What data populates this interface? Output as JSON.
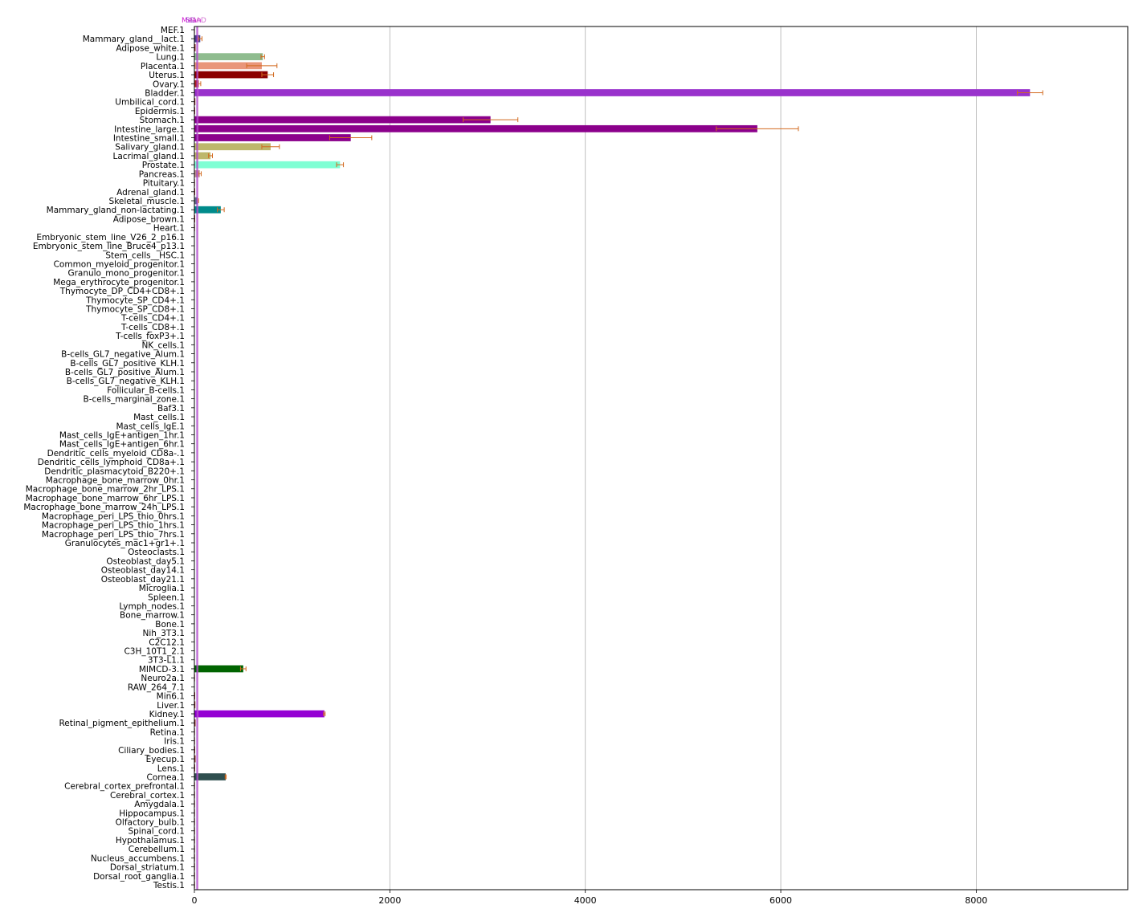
{
  "chart_data": {
    "type": "bar",
    "orientation": "horizontal",
    "title": "",
    "xlabel": "",
    "ylabel": "",
    "xlim": [
      0,
      9550
    ],
    "xticks": [
      0,
      2000,
      4000,
      6000,
      8000
    ],
    "grid": "vertical",
    "legend": "top-left",
    "legend_entries": [
      "Mean",
      "SD",
      "MAD"
    ],
    "legend_colors": [
      "#cc00cc",
      "#9933cc",
      "#cc66cc"
    ],
    "error_bar_color": "#d2691e",
    "reference_line_color": "#cc00cc",
    "categories": [
      "MEF.1",
      "Mammary_gland__lact.1",
      "Adipose_white.1",
      "Lung.1",
      "Placenta.1",
      "Uterus.1",
      "Ovary.1",
      "Bladder.1",
      "Umbilical_cord.1",
      "Epidermis.1",
      "Stomach.1",
      "Intestine_large.1",
      "Intestine_small.1",
      "Salivary_gland.1",
      "Lacrimal_gland.1",
      "Prostate.1",
      "Pancreas.1",
      "Pituitary.1",
      "Adrenal_gland.1",
      "Skeletal_muscle.1",
      "Mammary_gland_non-lactating.1",
      "Adipose_brown.1",
      "Heart.1",
      "Embryonic_stem_line_V26_2_p16.1",
      "Embryonic_stem_line_Bruce4_p13.1",
      "Stem_cells__HSC.1",
      "Common_myeloid_progenitor.1",
      "Granulo_mono_progenitor.1",
      "Mega_erythrocyte_progenitor.1",
      "Thymocyte_DP_CD4+CD8+.1",
      "Thymocyte_SP_CD4+.1",
      "Thymocyte_SP_CD8+.1",
      "T-cells_CD4+.1",
      "T-cells_CD8+.1",
      "T-cells_foxP3+.1",
      "NK_cells.1",
      "B-cells_GL7_negative_Alum.1",
      "B-cells_GL7_positive_KLH.1",
      "B-cells_GL7_positive_Alum.1",
      "B-cells_GL7_negative_KLH.1",
      "Follicular_B-cells.1",
      "B-cells_marginal_zone.1",
      "Baf3.1",
      "Mast_cells.1",
      "Mast_cells_IgE.1",
      "Mast_cells_IgE+antigen_1hr.1",
      "Mast_cells_IgE+antigen_6hr.1",
      "Dendritic_cells_myeloid_CD8a-.1",
      "Dendritic_cells_lymphoid_CD8a+.1",
      "Dendritic_plasmacytoid_B220+.1",
      "Macrophage_bone_marrow_0hr.1",
      "Macrophage_bone_marrow_2hr_LPS.1",
      "Macrophage_bone_marrow_6hr_LPS.1",
      "Macrophage_bone_marrow_24h_LPS.1",
      "Macrophage_peri_LPS_thio_0hrs.1",
      "Macrophage_peri_LPS_thio_1hrs.1",
      "Macrophage_peri_LPS_thio_7hrs.1",
      "Granulocytes_mac1+gr1+.1",
      "Osteoclasts.1",
      "Osteoblast_day5.1",
      "Osteoblast_day14.1",
      "Osteoblast_day21.1",
      "Microglia.1",
      "Spleen.1",
      "Lymph_nodes.1",
      "Bone_marrow.1",
      "Bone.1",
      "Nih_3T3.1",
      "C2C12.1",
      "C3H_10T1_2.1",
      "3T3-L1.1",
      "MIMCD-3.1",
      "Neuro2a.1",
      "RAW_264_7.1",
      "Min6.1",
      "Liver.1",
      "Kidney.1",
      "Retinal_pigment_epithelium.1",
      "Retina.1",
      "Iris.1",
      "Ciliary_bodies.1",
      "Eyecup.1",
      "Lens.1",
      "Cornea.1",
      "Cerebral_cortex_prefrontal.1",
      "Cerebral_cortex.1",
      "Amygdala.1",
      "Hippocampus.1",
      "Olfactory_bulb.1",
      "Spinal_cord.1",
      "Hypothalamus.1",
      "Cerebellum.1",
      "Nucleus_accumbens.1",
      "Dorsal_striatum.1",
      "Dorsal_root_ganglia.1",
      "Testis.1"
    ],
    "values": [
      5,
      60,
      12,
      700,
      690,
      750,
      45,
      8550,
      10,
      8,
      3030,
      5760,
      1600,
      780,
      165,
      1490,
      55,
      6,
      8,
      35,
      270,
      8,
      6,
      4,
      4,
      3,
      3,
      3,
      3,
      3,
      3,
      3,
      3,
      3,
      3,
      3,
      3,
      3,
      3,
      3,
      3,
      3,
      3,
      3,
      3,
      3,
      3,
      3,
      3,
      3,
      3,
      3,
      3,
      3,
      3,
      3,
      3,
      3,
      3,
      3,
      3,
      3,
      3,
      3,
      3,
      3,
      3,
      3,
      3,
      3,
      4,
      500,
      6,
      4,
      8,
      10,
      1330,
      12,
      6,
      6,
      8,
      12,
      8,
      320,
      6,
      6,
      6,
      6,
      6,
      6,
      6,
      6,
      6,
      6,
      6,
      6
    ],
    "errors": [
      0,
      18,
      0,
      18,
      155,
      60,
      20,
      130,
      0,
      0,
      280,
      420,
      215,
      90,
      20,
      35,
      15,
      0,
      0,
      8,
      35,
      0,
      0,
      0,
      0,
      0,
      0,
      0,
      0,
      0,
      0,
      0,
      0,
      0,
      0,
      0,
      0,
      0,
      0,
      0,
      0,
      0,
      0,
      0,
      0,
      0,
      0,
      0,
      0,
      0,
      0,
      0,
      0,
      0,
      0,
      0,
      0,
      0,
      0,
      0,
      0,
      0,
      0,
      0,
      0,
      0,
      0,
      0,
      0,
      0,
      0,
      28,
      0,
      0,
      0,
      0,
      8,
      0,
      0,
      0,
      0,
      0,
      0,
      5,
      0,
      0,
      0,
      0,
      0,
      0,
      0,
      0,
      0,
      0,
      0,
      0
    ],
    "colors": [
      "#8b1a1a",
      "#483d8b",
      "#8b1a1a",
      "#8fbc8f",
      "#e9967a",
      "#8b0000",
      "#b22222",
      "#9932cc",
      "#8b1a1a",
      "#8b1a1a",
      "#8b008b",
      "#8b008b",
      "#8b008b",
      "#bdb76b",
      "#bdb76b",
      "#7fffd4",
      "#bc8f8f",
      "#8b1a1a",
      "#8b1a1a",
      "#5f6b8a",
      "#008b8b",
      "#8b1a1a",
      "#8b1a1a",
      "#8b1a1a",
      "#8b1a1a",
      "#8b1a1a",
      "#8b1a1a",
      "#8b1a1a",
      "#8b1a1a",
      "#8b1a1a",
      "#8b1a1a",
      "#8b1a1a",
      "#8b1a1a",
      "#8b1a1a",
      "#8b1a1a",
      "#8b1a1a",
      "#8b1a1a",
      "#8b1a1a",
      "#8b1a1a",
      "#8b1a1a",
      "#8b1a1a",
      "#8b1a1a",
      "#8b1a1a",
      "#8b1a1a",
      "#8b1a1a",
      "#8b1a1a",
      "#8b1a1a",
      "#8b1a1a",
      "#8b1a1a",
      "#8b1a1a",
      "#8b1a1a",
      "#8b1a1a",
      "#8b1a1a",
      "#8b1a1a",
      "#8b1a1a",
      "#8b1a1a",
      "#8b1a1a",
      "#8b1a1a",
      "#8b1a1a",
      "#8b1a1a",
      "#8b1a1a",
      "#8b1a1a",
      "#8b1a1a",
      "#8b1a1a",
      "#8b1a1a",
      "#8b1a1a",
      "#8b1a1a",
      "#8b1a1a",
      "#8b1a1a",
      "#8b1a1a",
      "#8b1a1a",
      "#006400",
      "#8b1a1a",
      "#8b1a1a",
      "#8b1a1a",
      "#8b1a1a",
      "#9400d3",
      "#8b1a1a",
      "#8b1a1a",
      "#8b1a1a",
      "#8b1a1a",
      "#8b1a1a",
      "#8b1a1a",
      "#2f4f4f",
      "#8b1a1a",
      "#8b1a1a",
      "#8b1a1a",
      "#8b1a1a",
      "#8b1a1a",
      "#8b1a1a",
      "#8b1a1a",
      "#8b1a1a",
      "#8b1a1a",
      "#8b1a1a",
      "#8b1a1a",
      "#8b1a1a"
    ],
    "reference_lines": [
      0,
      25,
      35
    ]
  }
}
